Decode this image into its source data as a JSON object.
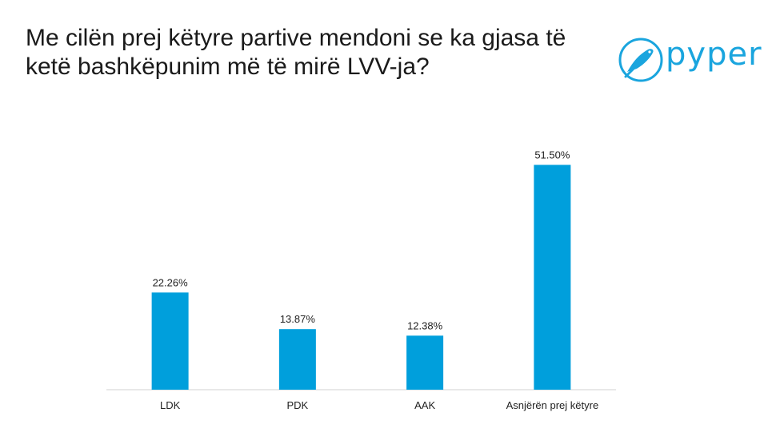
{
  "chart_data": {
    "type": "bar",
    "title": "Me cilën prej këtyre partive mendoni se ka gjasa të ketë bashkëpunim më të mirë LVV-ja?",
    "categories": [
      "LDK",
      "PDK",
      "AAK",
      "Asnjërën prej këtyre"
    ],
    "values": [
      22.26,
      13.87,
      12.38,
      51.5
    ],
    "value_labels": [
      "22.26%",
      "13.87%",
      "12.38%",
      "51.50%"
    ],
    "ylim": [
      0,
      60
    ],
    "bar_color": "#009fdc",
    "grid": false,
    "legend": "none"
  },
  "logo": {
    "text": "pyper",
    "color": "#1aa5de"
  }
}
